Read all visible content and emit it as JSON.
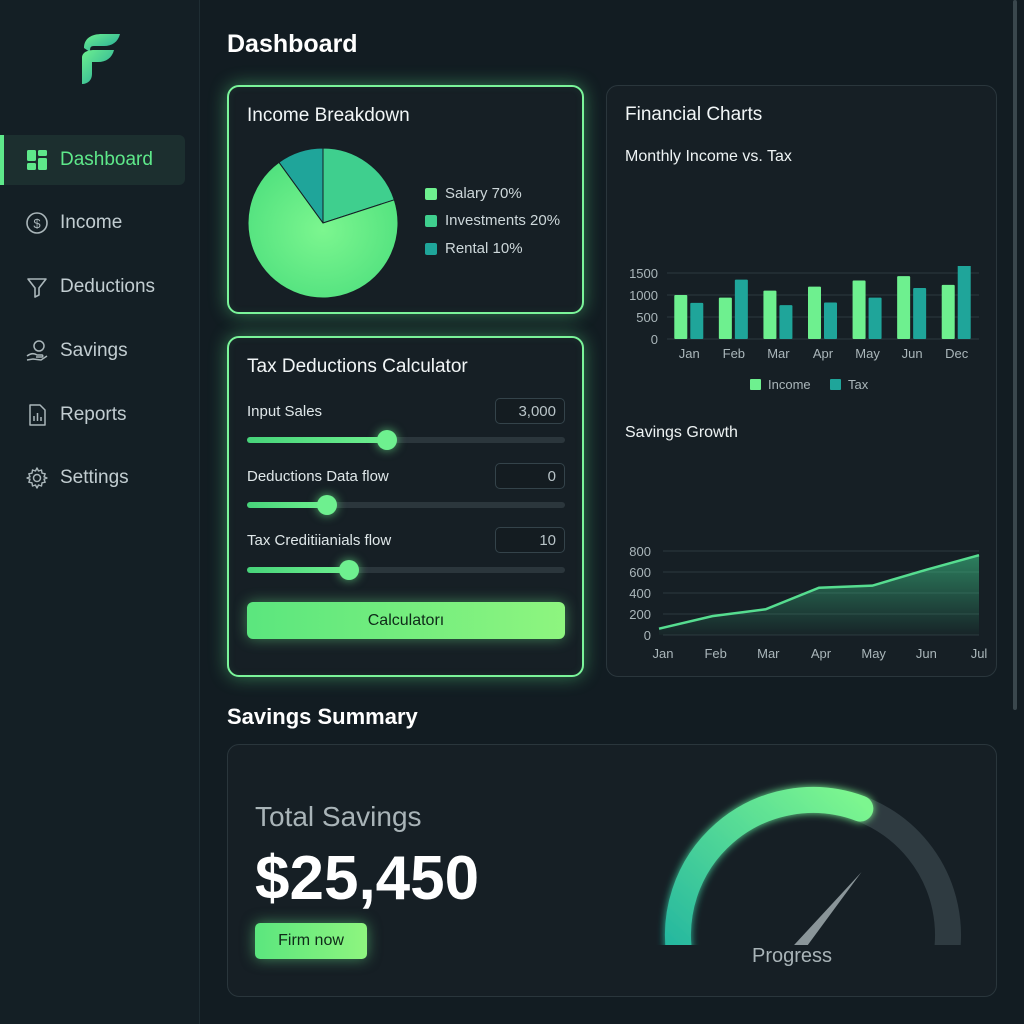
{
  "sidebar": {
    "items": [
      {
        "label": "Dashboard",
        "icon": "dashboard-grid-icon",
        "active": true
      },
      {
        "label": "Income",
        "icon": "dollar-circle-icon",
        "active": false
      },
      {
        "label": "Deductions",
        "icon": "funnel-icon",
        "active": false
      },
      {
        "label": "Savings",
        "icon": "hand-coin-icon",
        "active": false
      },
      {
        "label": "Reports",
        "icon": "report-chart-icon",
        "active": false
      },
      {
        "label": "Settings",
        "icon": "gear-icon",
        "active": false
      }
    ]
  },
  "header": {
    "title": "Dashboard"
  },
  "income_breakdown": {
    "title": "Income Breakdown",
    "legend": [
      {
        "label": "Salary 70%",
        "color": "#6ef08f"
      },
      {
        "label": "Investments 20%",
        "color": "#3fcf8e"
      },
      {
        "label": "Rental 10%",
        "color": "#1fa59a"
      }
    ]
  },
  "tax_calculator": {
    "title": "Tax Deductions Calculator",
    "fields": [
      {
        "label": "Input Sales",
        "value": "3,000",
        "level": 0.44
      },
      {
        "label": "Deductions Data flow",
        "value": "0",
        "level": 0.25
      },
      {
        "label": "Tax Creditiianials flow",
        "value": "10",
        "level": 0.32
      }
    ],
    "button_label": "Calculatorı"
  },
  "financial_charts": {
    "title": "Financial Charts",
    "income_vs_tax_title": "Monthly Income vs. Tax",
    "savings_growth_title": "Savings Growth"
  },
  "chart_data": [
    {
      "type": "bar",
      "title": "Monthly Income vs. Tax",
      "categories": [
        "Jan",
        "Feb",
        "Mar",
        "Apr",
        "May",
        "Jun",
        "Dec"
      ],
      "series": [
        {
          "name": "Income",
          "values": [
            1000,
            940,
            1100,
            1190,
            1330,
            1430,
            1230
          ],
          "color": "#6ef08f"
        },
        {
          "name": "Tax",
          "values": [
            820,
            1350,
            770,
            830,
            940,
            1160,
            1740
          ],
          "color": "#1fa59a"
        }
      ],
      "yticks": [
        "0",
        "500",
        "1000",
        "1500"
      ],
      "ylim": [
        0,
        1500
      ],
      "legend_position": "bottom",
      "grid": true
    },
    {
      "type": "area",
      "title": "Savings Growth",
      "categories": [
        "Jan",
        "Feb",
        "Mar",
        "Apr",
        "May",
        "Jun",
        "Jul"
      ],
      "values": [
        60,
        180,
        245,
        450,
        470,
        620,
        760
      ],
      "yticks": [
        "0",
        "200",
        "400",
        "600",
        "800"
      ],
      "ylim": [
        0,
        800
      ],
      "grid": true
    }
  ],
  "savings_summary": {
    "section_title": "Savings Summary",
    "total_label": "Total Savings",
    "total_value": "$25,450",
    "button_label": "Firm now",
    "gauge_label": "Progress",
    "gauge_level": 0.6
  },
  "colors": {
    "accent": "#6ef08f",
    "teal": "#1fa59a",
    "background": "#121c22"
  }
}
